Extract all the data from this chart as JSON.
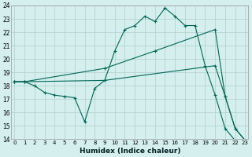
{
  "xlabel": "Humidex (Indice chaleur)",
  "background_color": "#d4efed",
  "grid_color": "#b0ceca",
  "line_color": "#006655",
  "xlim": [
    0,
    23
  ],
  "ylim": [
    14,
    24
  ],
  "yticks": [
    14,
    15,
    16,
    17,
    18,
    19,
    20,
    21,
    22,
    23,
    24
  ],
  "xticks": [
    0,
    1,
    2,
    3,
    4,
    5,
    6,
    7,
    8,
    9,
    10,
    11,
    12,
    13,
    14,
    15,
    16,
    17,
    18,
    19,
    20,
    21,
    22,
    23
  ],
  "series1_x": [
    0,
    1,
    2,
    3,
    4,
    5,
    6,
    7,
    8,
    9,
    10,
    11,
    12,
    13,
    14,
    15,
    16,
    17,
    18,
    19,
    20,
    21,
    22,
    23
  ],
  "series1_y": [
    18.3,
    18.3,
    18.0,
    17.5,
    17.3,
    17.2,
    17.1,
    15.3,
    17.8,
    18.4,
    20.6,
    22.2,
    22.5,
    23.2,
    22.8,
    23.8,
    23.2,
    22.5,
    22.5,
    19.5,
    17.3,
    14.8,
    13.9,
    13.9
  ],
  "series2_x": [
    0,
    1,
    9,
    20,
    21,
    22,
    23
  ],
  "series2_y": [
    18.3,
    18.3,
    18.4,
    19.5,
    17.2,
    14.8,
    13.9
  ],
  "series3_x": [
    0,
    1,
    9,
    14,
    20,
    21,
    22,
    23
  ],
  "series3_y": [
    18.3,
    18.3,
    19.3,
    20.6,
    22.2,
    17.2,
    14.8,
    13.9
  ]
}
